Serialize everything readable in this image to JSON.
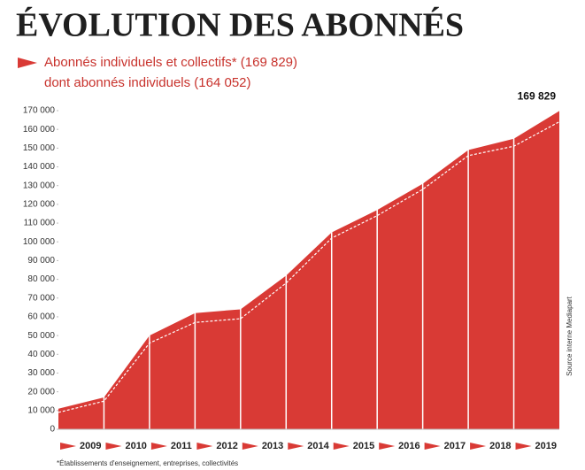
{
  "chart_data": {
    "type": "area",
    "title": "ÉVOLUTION DES ABONNÉS",
    "categories": [
      null,
      "2009",
      "2010",
      "2011",
      "2012",
      "2013",
      "2014",
      "2015",
      "2016",
      "2017",
      "2018",
      "2019"
    ],
    "series": [
      {
        "name": "Abonnés individuels et collectifs* (169 829)",
        "color": "#d93a35",
        "values": [
          11000,
          17000,
          50000,
          62000,
          64000,
          82000,
          105000,
          117000,
          131000,
          149000,
          155000,
          169829
        ],
        "value_labels": [
          null,
          null,
          null,
          null,
          null,
          null,
          null,
          null,
          null,
          null,
          null,
          "169 829"
        ]
      },
      {
        "name": "dont abonnés individuels (164 052)",
        "color": "#ffffff",
        "values": [
          9000,
          15000,
          46000,
          57000,
          59000,
          78000,
          102000,
          114000,
          128000,
          146000,
          151000,
          164052
        ]
      }
    ],
    "ylim": [
      0,
      170000
    ],
    "yticks": [
      0,
      {
        "value": 10000,
        "label": "10 000"
      },
      {
        "value": 20000,
        "label": "20 000"
      },
      {
        "value": 30000,
        "label": "30 000"
      },
      {
        "value": 40000,
        "label": "40 000"
      },
      {
        "value": 50000,
        "label": "50 000"
      },
      {
        "value": 60000,
        "label": "60 000"
      },
      {
        "value": 70000,
        "label": "70 000"
      },
      {
        "value": 80000,
        "label": "80 000"
      },
      {
        "value": 90000,
        "label": "90 000"
      },
      {
        "value": 100000,
        "label": "100 000"
      },
      {
        "value": 110000,
        "label": "110 000"
      },
      {
        "value": 120000,
        "label": "120 000"
      },
      {
        "value": 130000,
        "label": "130 000"
      },
      {
        "value": 140000,
        "label": "140 000"
      },
      {
        "value": 150000,
        "label": "150 000"
      },
      {
        "value": 160000,
        "label": "160 000"
      },
      {
        "value": 170000,
        "label": "170 000"
      }
    ],
    "source": "Source interne Mediapart",
    "footnote": "*Établissements d'enseignement, entreprises, collectivités"
  }
}
